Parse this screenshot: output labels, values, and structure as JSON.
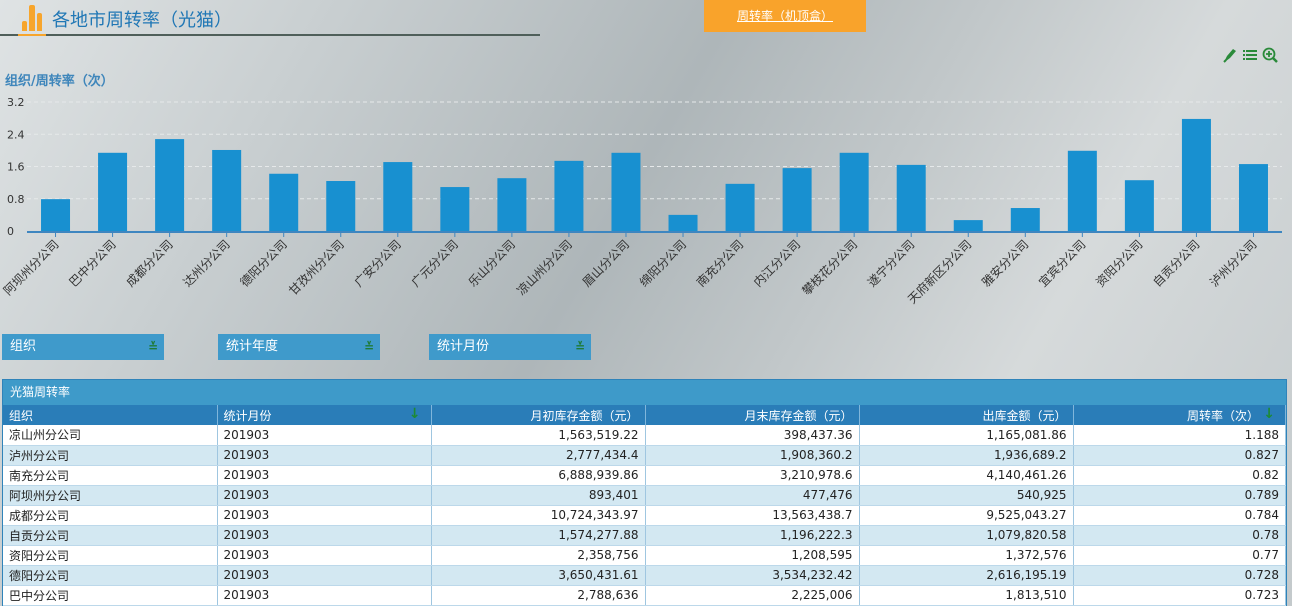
{
  "header": {
    "title": "各地市周转率（光猫）",
    "logo_icon": "bar-chart-icon"
  },
  "tab_button": {
    "label": "周转率（机顶盒）"
  },
  "tools": [
    {
      "name": "pencil-icon"
    },
    {
      "name": "list-icon"
    },
    {
      "name": "zoom-in-icon"
    }
  ],
  "chart_data": {
    "type": "bar",
    "title": "组织/周转率（次）",
    "xlabel": "",
    "ylabel": "组织/周转率（次）",
    "ylim": [
      0,
      3.2
    ],
    "yticks": [
      0,
      0.8,
      1.6,
      2.4,
      3.2
    ],
    "ytick_labels": [
      "0",
      "0.8",
      "1.6",
      "2.4",
      "3.2"
    ],
    "grid": true,
    "color": "#1890d0",
    "categories": [
      "阿坝州分公司",
      "巴中分公司",
      "成都分公司",
      "达州分公司",
      "德阳分公司",
      "甘孜州分公司",
      "广安分公司",
      "广元分公司",
      "乐山分公司",
      "凉山州分公司",
      "眉山分公司",
      "绵阳分公司",
      "南充分公司",
      "内江分公司",
      "攀枝花分公司",
      "遂宁分公司",
      "天府新区分公司",
      "雅安分公司",
      "宜宾分公司",
      "资阳分公司",
      "自贡分公司",
      "泸州分公司"
    ],
    "values": [
      0.79,
      1.94,
      2.28,
      2.01,
      1.42,
      1.24,
      1.71,
      1.09,
      1.31,
      1.74,
      1.94,
      0.4,
      1.17,
      1.56,
      1.94,
      1.64,
      0.27,
      0.57,
      1.99,
      1.26,
      2.78,
      1.66
    ]
  },
  "filters": [
    {
      "label": "组织",
      "icon": "double-chevron-down-icon"
    },
    {
      "label": "统计年度",
      "icon": "double-chevron-down-icon"
    },
    {
      "label": "统计月份",
      "icon": "double-chevron-down-icon"
    }
  ],
  "table": {
    "caption": "光猫周转率",
    "columns": [
      "组织",
      "统计月份",
      "月初库存金额（元）",
      "月末库存金额（元）",
      "出库金额（元）",
      "周转率（次）"
    ],
    "sort_icon": "arrow-down-icon",
    "rows": [
      [
        "凉山州分公司",
        "201903",
        "1,563,519.22",
        "398,437.36",
        "1,165,081.86",
        "1.188"
      ],
      [
        "泸州分公司",
        "201903",
        "2,777,434.4",
        "1,908,360.2",
        "1,936,689.2",
        "0.827"
      ],
      [
        "南充分公司",
        "201903",
        "6,888,939.86",
        "3,210,978.6",
        "4,140,461.26",
        "0.82"
      ],
      [
        "阿坝州分公司",
        "201903",
        "893,401",
        "477,476",
        "540,925",
        "0.789"
      ],
      [
        "成都分公司",
        "201903",
        "10,724,343.97",
        "13,563,438.7",
        "9,525,043.27",
        "0.784"
      ],
      [
        "自贡分公司",
        "201903",
        "1,574,277.88",
        "1,196,222.3",
        "1,079,820.58",
        "0.78"
      ],
      [
        "资阳分公司",
        "201903",
        "2,358,756",
        "1,208,595",
        "1,372,576",
        "0.77"
      ],
      [
        "德阳分公司",
        "201903",
        "3,650,431.61",
        "3,534,232.42",
        "2,616,195.19",
        "0.728"
      ],
      [
        "巴中分公司",
        "201903",
        "2,788,636",
        "2,225,006",
        "1,813,510",
        "0.723"
      ]
    ]
  }
}
